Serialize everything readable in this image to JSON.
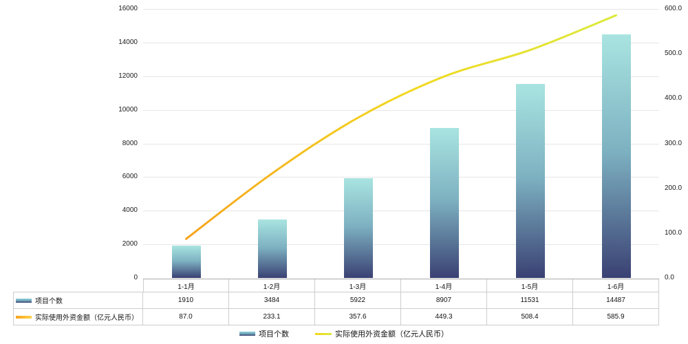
{
  "chart_data": {
    "type": "combo-bar-line",
    "categories": [
      "1-1月",
      "1-2月",
      "1-3月",
      "1-4月",
      "1-5月",
      "1-6月"
    ],
    "series": [
      {
        "name": "项目个数",
        "type": "bar",
        "y_axis": "left",
        "values": [
          1910,
          3484,
          5922,
          8907,
          11531,
          14487
        ]
      },
      {
        "name": "实际使用外资金额（亿元人民币）",
        "type": "line",
        "y_axis": "right",
        "values": [
          87.0,
          233.1,
          357.6,
          449.3,
          508.4,
          585.9
        ]
      }
    ],
    "left_axis": {
      "min": 0,
      "max": 16000,
      "step": 2000,
      "labels": [
        "0",
        "2000",
        "4000",
        "6000",
        "8000",
        "10000",
        "12000",
        "14000",
        "16000"
      ]
    },
    "right_axis": {
      "min": 0,
      "max": 600,
      "step": 100,
      "labels": [
        "0.0",
        "100.0",
        "200.0",
        "300.0",
        "400.0",
        "500.0",
        "600.0"
      ]
    },
    "grid": "horizontal-only",
    "legend_position": "bottom",
    "colors": {
      "bar_gradient_top": "#a9e4e1",
      "bar_gradient_mid": "#7db1c1",
      "bar_gradient_bottom": "#3a4173",
      "line_gradient_start": "#f6a31c",
      "line_gradient_mid": "#f2d71e",
      "line_gradient_end": "#dcea3c",
      "grid_line": "#e6e6e6",
      "axis_line": "#aaaaaa",
      "table_border": "#cccccc",
      "text": "#111111"
    }
  },
  "table": {
    "rows": [
      {
        "label": "项目个数",
        "values": [
          "1910",
          "3484",
          "5922",
          "8907",
          "11531",
          "14487"
        ]
      },
      {
        "label": "实际使用外资金额（亿元人民币）",
        "values": [
          "87.0",
          "233.1",
          "357.6",
          "449.3",
          "508.4",
          "585.9"
        ]
      }
    ]
  },
  "legend": {
    "items": [
      {
        "label": "项目个数",
        "swatch": "bar"
      },
      {
        "label": "实际使用外资金额（亿元人民币）",
        "swatch": "line"
      }
    ]
  }
}
